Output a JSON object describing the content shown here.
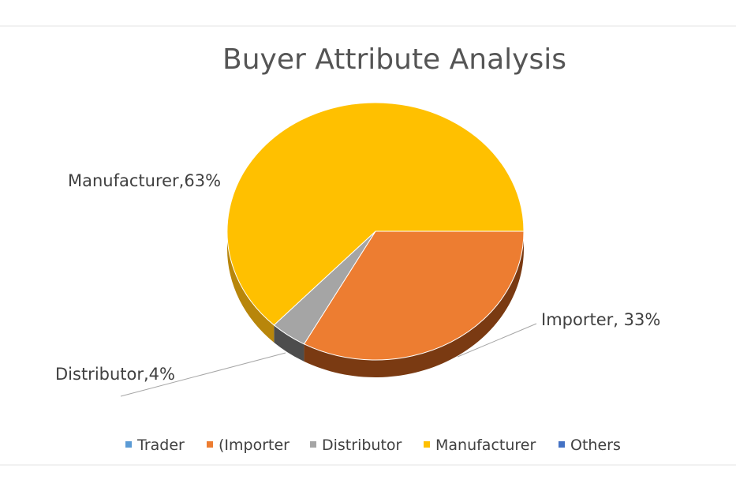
{
  "chart_data": {
    "type": "pie",
    "title": "Buyer Attribute Analysis",
    "slices": [
      {
        "name": "Trader",
        "value": 0,
        "color": "#5b9bd5"
      },
      {
        "name": "Importer",
        "value": 33,
        "color": "#ed7d31",
        "side_color": "#7a3a12"
      },
      {
        "name": "Distributor",
        "value": 4,
        "color": "#a5a5a5",
        "side_color": "#4d4d4d"
      },
      {
        "name": "Manufacturer",
        "value": 63,
        "color": "#ffc000",
        "side_color": "#b8860b"
      },
      {
        "name": "Others",
        "value": 0,
        "color": "#4472c4"
      }
    ],
    "data_labels": {
      "importer": "Importer, 33%",
      "distributor": "Distributor,4%",
      "manufacturer": "Manufacturer,63%"
    },
    "legend": {
      "position": "bottom",
      "entries": [
        "Trader",
        "(Importer",
        "Distributor",
        "Manufacturer",
        "Others"
      ]
    },
    "style": "3d"
  }
}
